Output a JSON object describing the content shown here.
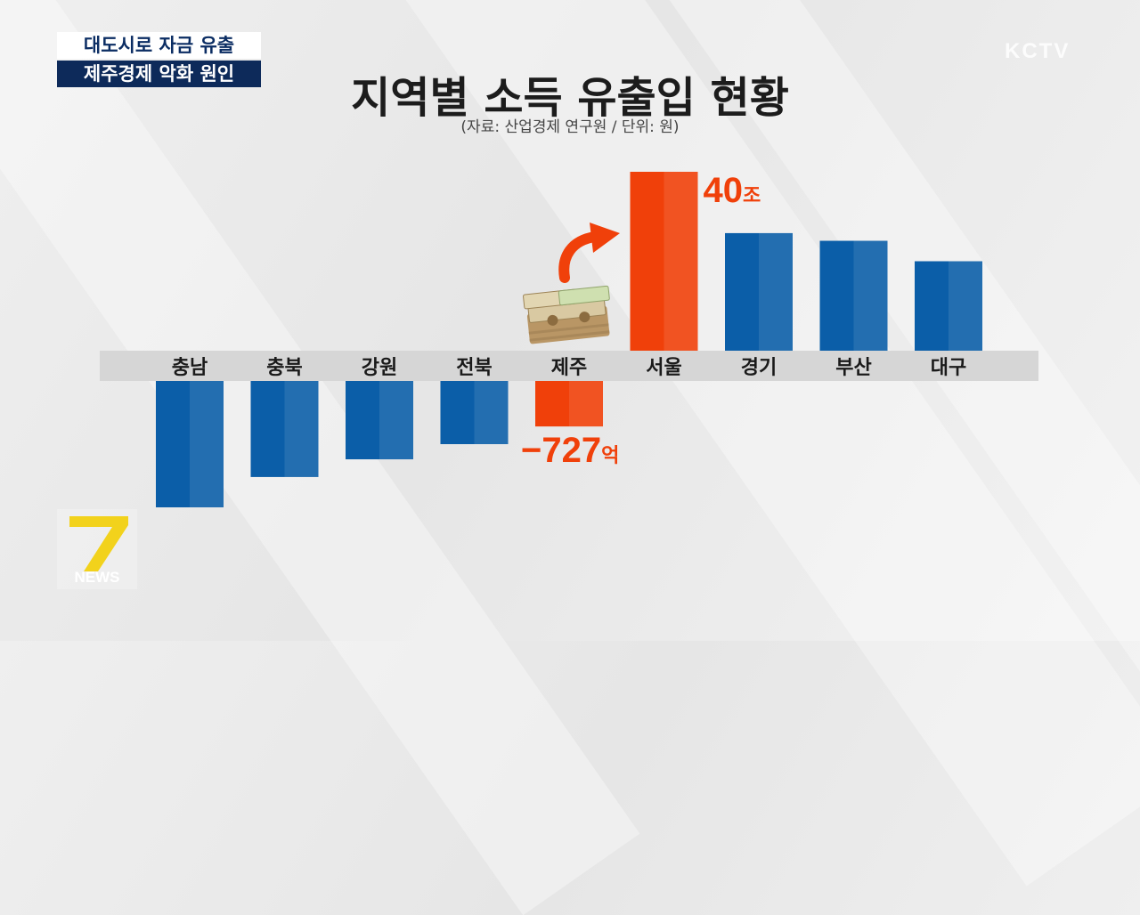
{
  "headline": {
    "line1": "대도시로 자금 유출",
    "line2": "제주경제 악화 원인"
  },
  "channel": {
    "logo": "KCTV"
  },
  "program_logo": {
    "number": "7",
    "text": "NEWS"
  },
  "colors": {
    "negative_bar": "#0b5ea8",
    "highlight_bar": "#f0400a",
    "axis_band": "#d6d6d6"
  },
  "chart_data": {
    "type": "bar",
    "title": "지역별 소득 유출입 현황",
    "subtitle": "(자료: 산업경제 연구원 / 단위: 원)",
    "categories": [
      "충남",
      "충북",
      "강원",
      "전북",
      "제주",
      "서울",
      "경기",
      "부산",
      "대구"
    ],
    "values": [
      -50,
      -38,
      -31,
      -25,
      -18,
      70,
      46,
      43,
      35
    ],
    "highlight": [
      "제주",
      "서울"
    ],
    "annotations": [
      {
        "category": "서울",
        "value_text": "40",
        "unit_text": "조"
      },
      {
        "category": "제주",
        "value_text": "−727",
        "unit_text": "억"
      }
    ],
    "icons": [
      "money-stack-icon",
      "curved-arrow-icon"
    ]
  }
}
